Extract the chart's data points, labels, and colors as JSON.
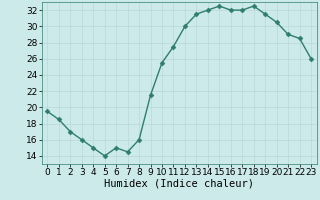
{
  "x": [
    0,
    1,
    2,
    3,
    4,
    5,
    6,
    7,
    8,
    9,
    10,
    11,
    12,
    13,
    14,
    15,
    16,
    17,
    18,
    19,
    20,
    21,
    22,
    23
  ],
  "y": [
    19.5,
    18.5,
    17.0,
    16.0,
    15.0,
    14.0,
    15.0,
    14.5,
    16.0,
    21.5,
    25.5,
    27.5,
    30.0,
    31.5,
    32.0,
    32.5,
    32.0,
    32.0,
    32.5,
    31.5,
    30.5,
    29.0,
    28.5,
    26.0
  ],
  "line_color": "#2e7d6e",
  "marker": "D",
  "marker_size": 2.5,
  "bg_color": "#cdeaea",
  "grid_color": "#b8d8d6",
  "xlabel": "Humidex (Indice chaleur)",
  "xlim": [
    -0.5,
    23.5
  ],
  "ylim": [
    13,
    33
  ],
  "yticks": [
    14,
    16,
    18,
    20,
    22,
    24,
    26,
    28,
    30,
    32
  ],
  "xticks": [
    0,
    1,
    2,
    3,
    4,
    5,
    6,
    7,
    8,
    9,
    10,
    11,
    12,
    13,
    14,
    15,
    16,
    17,
    18,
    19,
    20,
    21,
    22,
    23
  ],
  "tick_fontsize": 6.5,
  "xlabel_fontsize": 7.5,
  "line_width": 1.0
}
